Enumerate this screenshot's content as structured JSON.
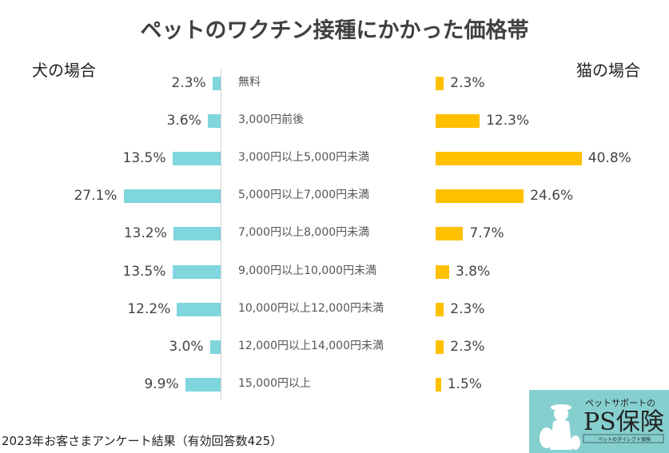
{
  "chart_data": {
    "type": "bar",
    "title": "ペットのワクチン接種にかかった価格帯",
    "categories": [
      "無料",
      "3,000円前後",
      "3,000円以上5,000円未満",
      "5,000円以上7,000円未満",
      "7,000円以上8,000円未満",
      "9,000円以上10,000円未満",
      "10,000円以上12,000円未満",
      "12,000円以上14,000円未満",
      "15,000円以上"
    ],
    "series": [
      {
        "name": "犬の場合",
        "color": "#7fd6dc",
        "values": [
          2.3,
          3.6,
          13.5,
          27.1,
          13.2,
          13.5,
          12.2,
          3.0,
          9.9
        ],
        "labels": [
          "2.3%",
          "3.6%",
          "13.5%",
          "27.1%",
          "13.2%",
          "13.5%",
          "12.2%",
          "3.0%",
          "9.9%"
        ]
      },
      {
        "name": "猫の場合",
        "color": "#ffc000",
        "values": [
          2.3,
          12.3,
          40.8,
          24.6,
          7.7,
          3.8,
          2.3,
          2.3,
          1.5
        ],
        "labels": [
          "2.3%",
          "12.3%",
          "40.8%",
          "24.6%",
          "7.7%",
          "3.8%",
          "2.3%",
          "2.3%",
          "1.5%"
        ]
      }
    ],
    "unit": "%",
    "grid": false
  },
  "footer": "2023年お客さまアンケート結果（有効回答数425）",
  "logo": {
    "top": "ペットサポートの",
    "main": "PS保険",
    "sub": "ペットのダイレクト保険",
    "bg": "#86cfcf"
  }
}
